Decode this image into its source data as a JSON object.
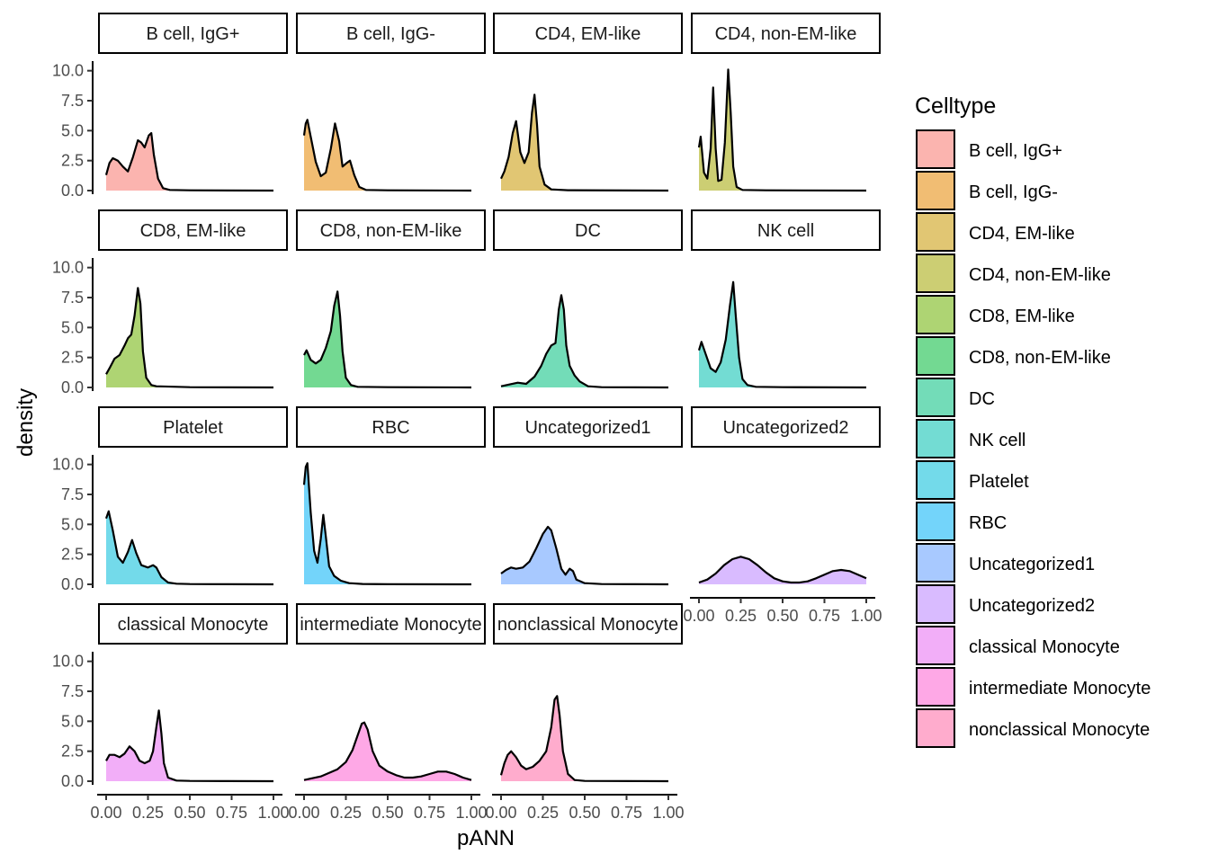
{
  "chart_data": {
    "type": "area",
    "subtype": "faceted density",
    "xlabel": "pANN",
    "ylabel": "density",
    "xlim": [
      0,
      1
    ],
    "ylim": [
      0,
      10.5
    ],
    "x_ticks": [
      "0.00",
      "0.25",
      "0.50",
      "0.75",
      "1.00"
    ],
    "y_ticks": [
      "0.0",
      "2.5",
      "5.0",
      "7.5",
      "10.0"
    ],
    "legend_title": "Celltype",
    "legend_position": "right",
    "grid": false,
    "facet_layout": {
      "ncol": 4,
      "nrow": 4
    },
    "series": [
      {
        "name": "B cell, IgG+",
        "strip_label": "B cell, IgG+",
        "color": "#F8766D",
        "points": [
          [
            0,
            1.3
          ],
          [
            0.02,
            2.3
          ],
          [
            0.04,
            2.7
          ],
          [
            0.07,
            2.5
          ],
          [
            0.1,
            2.0
          ],
          [
            0.13,
            1.6
          ],
          [
            0.16,
            2.8
          ],
          [
            0.19,
            4.2
          ],
          [
            0.21,
            4.0
          ],
          [
            0.23,
            3.6
          ],
          [
            0.255,
            4.6
          ],
          [
            0.27,
            4.8
          ],
          [
            0.285,
            3.0
          ],
          [
            0.31,
            1.0
          ],
          [
            0.34,
            0.2
          ],
          [
            0.38,
            0.05
          ],
          [
            0.5,
            0.02
          ],
          [
            1.0,
            0.0
          ]
        ]
      },
      {
        "name": "B cell, IgG-",
        "strip_label": "B cell, IgG-",
        "color": "#E58700",
        "points": [
          [
            0,
            4.6
          ],
          [
            0.01,
            5.6
          ],
          [
            0.02,
            5.9
          ],
          [
            0.04,
            4.5
          ],
          [
            0.07,
            2.4
          ],
          [
            0.1,
            1.2
          ],
          [
            0.13,
            1.5
          ],
          [
            0.16,
            3.5
          ],
          [
            0.185,
            5.6
          ],
          [
            0.21,
            4.1
          ],
          [
            0.23,
            2.0
          ],
          [
            0.255,
            2.3
          ],
          [
            0.275,
            2.5
          ],
          [
            0.3,
            1.3
          ],
          [
            0.33,
            0.3
          ],
          [
            0.37,
            0.05
          ],
          [
            0.5,
            0.02
          ],
          [
            1.0,
            0.0
          ]
        ]
      },
      {
        "name": "CD4, EM-like",
        "strip_label": "CD4, EM-like",
        "color": "#C99800",
        "points": [
          [
            0,
            1.0
          ],
          [
            0.02,
            1.6
          ],
          [
            0.045,
            2.8
          ],
          [
            0.07,
            4.8
          ],
          [
            0.09,
            5.8
          ],
          [
            0.115,
            3.2
          ],
          [
            0.14,
            2.3
          ],
          [
            0.165,
            3.2
          ],
          [
            0.185,
            6.5
          ],
          [
            0.2,
            8.0
          ],
          [
            0.215,
            5.5
          ],
          [
            0.23,
            2.0
          ],
          [
            0.26,
            0.5
          ],
          [
            0.3,
            0.1
          ],
          [
            0.4,
            0.03
          ],
          [
            1.0,
            0.0
          ]
        ]
      },
      {
        "name": "CD4, non-EM-like",
        "strip_label": "CD4, non-EM-like",
        "color": "#A3A500",
        "points": [
          [
            0,
            3.6
          ],
          [
            0.01,
            4.5
          ],
          [
            0.03,
            1.5
          ],
          [
            0.05,
            1.0
          ],
          [
            0.07,
            3.5
          ],
          [
            0.085,
            8.6
          ],
          [
            0.1,
            3.5
          ],
          [
            0.115,
            0.8
          ],
          [
            0.135,
            0.9
          ],
          [
            0.155,
            4.0
          ],
          [
            0.175,
            10.1
          ],
          [
            0.19,
            6.5
          ],
          [
            0.205,
            2.0
          ],
          [
            0.225,
            0.3
          ],
          [
            0.26,
            0.05
          ],
          [
            0.4,
            0.02
          ],
          [
            1.0,
            0.0
          ]
        ]
      },
      {
        "name": "CD8, EM-like",
        "strip_label": "CD8, EM-like",
        "color": "#6BB100",
        "points": [
          [
            0,
            1.1
          ],
          [
            0.02,
            1.6
          ],
          [
            0.05,
            2.4
          ],
          [
            0.08,
            2.7
          ],
          [
            0.11,
            3.5
          ],
          [
            0.13,
            4.1
          ],
          [
            0.15,
            4.4
          ],
          [
            0.17,
            6.0
          ],
          [
            0.19,
            8.3
          ],
          [
            0.205,
            7.0
          ],
          [
            0.22,
            3.0
          ],
          [
            0.24,
            0.8
          ],
          [
            0.27,
            0.2
          ],
          [
            0.3,
            0.1
          ],
          [
            0.5,
            0.02
          ],
          [
            1.0,
            0.0
          ]
        ]
      },
      {
        "name": "CD8, non-EM-like",
        "strip_label": "CD8, non-EM-like",
        "color": "#00BA38",
        "points": [
          [
            0,
            2.7
          ],
          [
            0.015,
            3.1
          ],
          [
            0.04,
            2.3
          ],
          [
            0.07,
            2.0
          ],
          [
            0.1,
            2.3
          ],
          [
            0.13,
            3.3
          ],
          [
            0.16,
            4.7
          ],
          [
            0.18,
            6.8
          ],
          [
            0.2,
            8.0
          ],
          [
            0.215,
            6.0
          ],
          [
            0.23,
            3.0
          ],
          [
            0.25,
            0.8
          ],
          [
            0.28,
            0.2
          ],
          [
            0.32,
            0.05
          ],
          [
            0.5,
            0.02
          ],
          [
            1.0,
            0.0
          ]
        ]
      },
      {
        "name": "DC",
        "strip_label": "DC",
        "color": "#00BF7D",
        "points": [
          [
            0,
            0.1
          ],
          [
            0.1,
            0.4
          ],
          [
            0.15,
            0.3
          ],
          [
            0.2,
            0.9
          ],
          [
            0.24,
            1.8
          ],
          [
            0.27,
            2.8
          ],
          [
            0.3,
            3.5
          ],
          [
            0.325,
            3.7
          ],
          [
            0.345,
            6.5
          ],
          [
            0.36,
            7.7
          ],
          [
            0.375,
            6.5
          ],
          [
            0.39,
            3.5
          ],
          [
            0.41,
            1.8
          ],
          [
            0.44,
            1.0
          ],
          [
            0.47,
            0.5
          ],
          [
            0.52,
            0.1
          ],
          [
            0.6,
            0.02
          ],
          [
            1.0,
            0.0
          ]
        ]
      },
      {
        "name": "NK cell",
        "strip_label": "NK cell",
        "color": "#00C0AF",
        "points": [
          [
            0,
            3.1
          ],
          [
            0.015,
            3.8
          ],
          [
            0.04,
            2.8
          ],
          [
            0.07,
            1.6
          ],
          [
            0.1,
            1.3
          ],
          [
            0.13,
            2.1
          ],
          [
            0.16,
            4.0
          ],
          [
            0.185,
            6.8
          ],
          [
            0.205,
            8.8
          ],
          [
            0.22,
            6.0
          ],
          [
            0.24,
            2.5
          ],
          [
            0.26,
            0.7
          ],
          [
            0.29,
            0.2
          ],
          [
            0.34,
            0.05
          ],
          [
            0.5,
            0.02
          ],
          [
            1.0,
            0.0
          ]
        ]
      },
      {
        "name": "Platelet",
        "strip_label": "Platelet",
        "color": "#00BCD8",
        "points": [
          [
            0,
            5.5
          ],
          [
            0.015,
            6.1
          ],
          [
            0.04,
            4.5
          ],
          [
            0.07,
            2.3
          ],
          [
            0.1,
            1.8
          ],
          [
            0.13,
            2.7
          ],
          [
            0.155,
            3.7
          ],
          [
            0.18,
            2.6
          ],
          [
            0.21,
            1.6
          ],
          [
            0.25,
            1.4
          ],
          [
            0.28,
            1.6
          ],
          [
            0.3,
            1.4
          ],
          [
            0.33,
            0.6
          ],
          [
            0.37,
            0.15
          ],
          [
            0.42,
            0.05
          ],
          [
            0.5,
            0.02
          ],
          [
            1.0,
            0.0
          ]
        ]
      },
      {
        "name": "RBC",
        "strip_label": "RBC",
        "color": "#00B0F6",
        "points": [
          [
            0,
            8.3
          ],
          [
            0.01,
            9.8
          ],
          [
            0.02,
            10.1
          ],
          [
            0.04,
            6.0
          ],
          [
            0.06,
            2.8
          ],
          [
            0.08,
            1.8
          ],
          [
            0.1,
            3.8
          ],
          [
            0.115,
            5.8
          ],
          [
            0.13,
            4.0
          ],
          [
            0.15,
            1.5
          ],
          [
            0.18,
            0.7
          ],
          [
            0.22,
            0.3
          ],
          [
            0.27,
            0.1
          ],
          [
            0.35,
            0.03
          ],
          [
            0.5,
            0.01
          ],
          [
            1.0,
            0.0
          ]
        ]
      },
      {
        "name": "Uncategorized1",
        "strip_label": "Uncategorized1",
        "color": "#619CFF",
        "points": [
          [
            0,
            0.9
          ],
          [
            0.03,
            1.2
          ],
          [
            0.06,
            1.4
          ],
          [
            0.09,
            1.3
          ],
          [
            0.13,
            1.4
          ],
          [
            0.17,
            1.9
          ],
          [
            0.21,
            3.0
          ],
          [
            0.25,
            4.2
          ],
          [
            0.28,
            4.8
          ],
          [
            0.3,
            4.5
          ],
          [
            0.33,
            3.0
          ],
          [
            0.36,
            1.3
          ],
          [
            0.385,
            0.8
          ],
          [
            0.41,
            1.3
          ],
          [
            0.43,
            1.1
          ],
          [
            0.45,
            0.4
          ],
          [
            0.5,
            0.1
          ],
          [
            0.6,
            0.02
          ],
          [
            1.0,
            0.0
          ]
        ]
      },
      {
        "name": "Uncategorized2",
        "strip_label": "Uncategorized2",
        "color": "#B983FF",
        "points": [
          [
            0,
            0.15
          ],
          [
            0.05,
            0.4
          ],
          [
            0.1,
            0.9
          ],
          [
            0.15,
            1.6
          ],
          [
            0.2,
            2.1
          ],
          [
            0.25,
            2.3
          ],
          [
            0.3,
            2.1
          ],
          [
            0.35,
            1.6
          ],
          [
            0.4,
            1.0
          ],
          [
            0.45,
            0.5
          ],
          [
            0.5,
            0.25
          ],
          [
            0.55,
            0.15
          ],
          [
            0.6,
            0.15
          ],
          [
            0.65,
            0.25
          ],
          [
            0.7,
            0.5
          ],
          [
            0.75,
            0.8
          ],
          [
            0.8,
            1.1
          ],
          [
            0.85,
            1.2
          ],
          [
            0.9,
            1.1
          ],
          [
            0.95,
            0.8
          ],
          [
            1.0,
            0.5
          ]
        ]
      },
      {
        "name": "classical Monocyte",
        "strip_label": "classical Monocyte",
        "color": "#E76BF3",
        "points": [
          [
            0,
            1.7
          ],
          [
            0.02,
            2.2
          ],
          [
            0.05,
            2.2
          ],
          [
            0.08,
            2.0
          ],
          [
            0.11,
            2.3
          ],
          [
            0.14,
            2.9
          ],
          [
            0.17,
            2.5
          ],
          [
            0.2,
            1.7
          ],
          [
            0.23,
            1.5
          ],
          [
            0.26,
            1.7
          ],
          [
            0.28,
            2.5
          ],
          [
            0.3,
            4.5
          ],
          [
            0.315,
            5.9
          ],
          [
            0.33,
            4.0
          ],
          [
            0.345,
            1.5
          ],
          [
            0.37,
            0.3
          ],
          [
            0.42,
            0.05
          ],
          [
            0.5,
            0.02
          ],
          [
            1.0,
            0.0
          ]
        ]
      },
      {
        "name": "intermediate Monocyte",
        "strip_label": "intermediate Monocyte",
        "color": "#FD61D1",
        "points": [
          [
            0,
            0.1
          ],
          [
            0.1,
            0.4
          ],
          [
            0.2,
            1.0
          ],
          [
            0.25,
            1.6
          ],
          [
            0.29,
            2.6
          ],
          [
            0.32,
            3.8
          ],
          [
            0.345,
            4.8
          ],
          [
            0.36,
            4.9
          ],
          [
            0.38,
            4.3
          ],
          [
            0.41,
            2.5
          ],
          [
            0.45,
            1.3
          ],
          [
            0.5,
            0.8
          ],
          [
            0.55,
            0.5
          ],
          [
            0.6,
            0.3
          ],
          [
            0.65,
            0.3
          ],
          [
            0.7,
            0.4
          ],
          [
            0.75,
            0.6
          ],
          [
            0.8,
            0.8
          ],
          [
            0.85,
            0.8
          ],
          [
            0.9,
            0.6
          ],
          [
            0.95,
            0.3
          ],
          [
            1.0,
            0.1
          ]
        ]
      },
      {
        "name": "nonclassical Monocyte",
        "strip_label": "nonclassical Monocyte",
        "color": "#FF67A4",
        "points": [
          [
            0,
            0.5
          ],
          [
            0.02,
            1.5
          ],
          [
            0.04,
            2.2
          ],
          [
            0.06,
            2.5
          ],
          [
            0.09,
            2.0
          ],
          [
            0.12,
            1.3
          ],
          [
            0.15,
            1.0
          ],
          [
            0.19,
            1.2
          ],
          [
            0.23,
            1.7
          ],
          [
            0.27,
            2.5
          ],
          [
            0.3,
            4.5
          ],
          [
            0.32,
            6.8
          ],
          [
            0.335,
            7.1
          ],
          [
            0.35,
            5.5
          ],
          [
            0.37,
            2.5
          ],
          [
            0.4,
            0.6
          ],
          [
            0.44,
            0.1
          ],
          [
            0.5,
            0.02
          ],
          [
            1.0,
            0.0
          ]
        ]
      }
    ]
  }
}
